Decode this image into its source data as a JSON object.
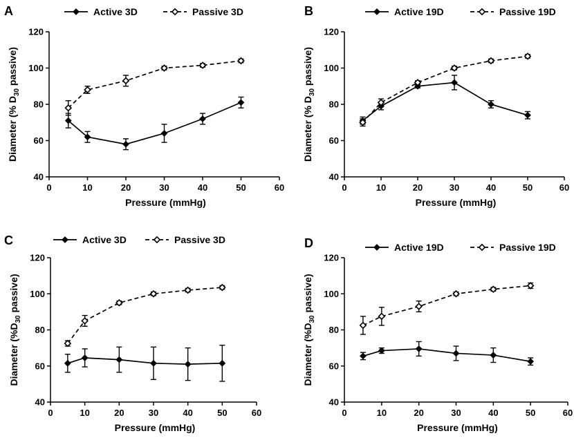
{
  "chart_data": [
    {
      "panel": "A",
      "type": "line",
      "x": [
        5,
        10,
        20,
        30,
        40,
        50
      ],
      "series": [
        {
          "name": "Active 3D",
          "style": "solid-filled",
          "values": [
            71,
            62,
            58,
            64,
            72,
            81
          ],
          "errors": [
            4,
            3,
            3,
            5,
            3,
            3
          ]
        },
        {
          "name": "Passive 3D",
          "style": "dashed-open",
          "values": [
            78,
            88,
            93,
            100,
            101.5,
            104
          ],
          "errors": [
            4,
            2,
            3,
            1,
            1,
            1
          ]
        }
      ],
      "xlabel": "Pressure (mmHg)",
      "ylabel": {
        "prefix": "Diameter (% D",
        "sub": "30",
        "suffix": " passive)"
      },
      "xlim": [
        0,
        60
      ],
      "ylim": [
        40,
        120
      ],
      "xticks": [
        "0",
        "10",
        "20",
        "30",
        "40",
        "50",
        "60"
      ],
      "yticks": [
        "40",
        "60",
        "80",
        "100",
        "120"
      ],
      "legend_position": "top"
    },
    {
      "panel": "B",
      "type": "line",
      "x": [
        5,
        10,
        20,
        30,
        40,
        50
      ],
      "series": [
        {
          "name": "Active 19D",
          "style": "solid-filled",
          "values": [
            71,
            79,
            90,
            92,
            80,
            74
          ],
          "errors": [
            2,
            2,
            1,
            4,
            2,
            2
          ]
        },
        {
          "name": "Passive 19D",
          "style": "dashed-open",
          "values": [
            70,
            81,
            92,
            100,
            104,
            106.5
          ],
          "errors": [
            2,
            2,
            1,
            1,
            1,
            1
          ]
        }
      ],
      "xlabel": "Pressure (mmHg)",
      "ylabel": {
        "prefix": "Diameter (% D",
        "sub": "30",
        "suffix": " passive)"
      },
      "xlim": [
        0,
        60
      ],
      "ylim": [
        40,
        120
      ],
      "xticks": [
        "0",
        "10",
        "20",
        "30",
        "40",
        "50",
        "60"
      ],
      "yticks": [
        "40",
        "60",
        "80",
        "100",
        "120"
      ],
      "legend_position": "top"
    },
    {
      "panel": "C",
      "type": "line",
      "x": [
        5,
        10,
        20,
        30,
        40,
        50
      ],
      "series": [
        {
          "name": "Active 3D",
          "style": "solid-filled",
          "values": [
            61.5,
            64.5,
            63.5,
            61.5,
            61,
            61.5
          ],
          "errors": [
            5,
            5,
            7,
            9,
            9,
            10
          ]
        },
        {
          "name": "Passive 3D",
          "style": "dashed-open",
          "values": [
            72.5,
            85,
            95,
            100,
            102,
            103.5
          ],
          "errors": [
            1.5,
            3,
            1,
            1,
            1,
            1
          ]
        }
      ],
      "xlabel": "Pressure (mmHg)",
      "ylabel": {
        "prefix": "Diameter (%D",
        "sub": "30",
        "suffix": " passive)"
      },
      "xlim": [
        0,
        60
      ],
      "ylim": [
        40,
        120
      ],
      "xticks": [
        "0",
        "10",
        "20",
        "30",
        "40",
        "50",
        "60"
      ],
      "yticks": [
        "40",
        "60",
        "80",
        "100",
        "120"
      ],
      "legend_position": "top"
    },
    {
      "panel": "D",
      "type": "line",
      "x": [
        5,
        10,
        20,
        30,
        40,
        50
      ],
      "series": [
        {
          "name": "Active 19D",
          "style": "solid-filled",
          "values": [
            65.5,
            68.5,
            69.5,
            67,
            66,
            62.5
          ],
          "errors": [
            2,
            1.5,
            4,
            4,
            4,
            2
          ]
        },
        {
          "name": "Passive 19D",
          "style": "dashed-open",
          "values": [
            82.5,
            87.5,
            93,
            100,
            102.5,
            104.5
          ],
          "errors": [
            5,
            5,
            3,
            1,
            1,
            1.5
          ]
        }
      ],
      "xlabel": "Pressure (mmHg)",
      "ylabel": {
        "prefix": "Diameter (%D",
        "sub": "30",
        "suffix": " passive)"
      },
      "xlim": [
        0,
        60
      ],
      "ylim": [
        40,
        120
      ],
      "xticks": [
        "0",
        "10",
        "20",
        "30",
        "40",
        "50",
        "60"
      ],
      "yticks": [
        "40",
        "60",
        "80",
        "100",
        "120"
      ],
      "legend_position": "top"
    }
  ]
}
